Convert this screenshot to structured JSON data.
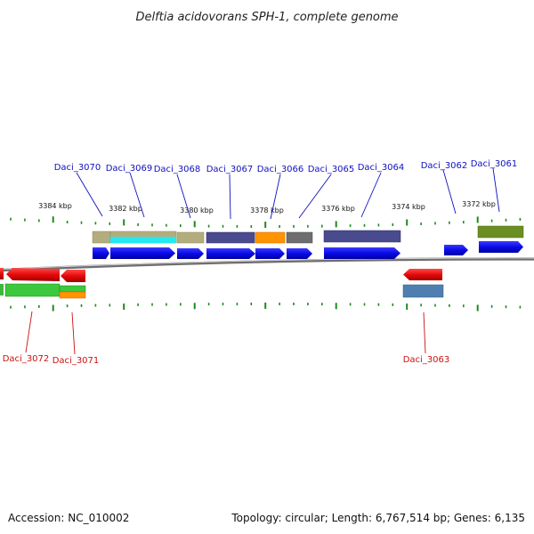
{
  "header": {
    "title": "Delftia acidovorans SPH-1, complete genome"
  },
  "footer": {
    "accession": "Accession: NC_010002",
    "topology": "Topology: circular; Length: 6,767,514 bp; Genes: 6,135"
  },
  "colors": {
    "label_top": "#1010c0",
    "label_bottom": "#cc1010",
    "backbone": "#8a8a8a",
    "tick": "#1d8a1d",
    "cds_forward": "#0a0ae6",
    "cds_reverse": "#e60a0a"
  },
  "scale": {
    "ticks": [
      {
        "label": "3384 kbp",
        "kbp": 3384
      },
      {
        "label": "3382 kbp",
        "kbp": 3382
      },
      {
        "label": "3380 kbp",
        "kbp": 3380
      },
      {
        "label": "3378 kbp",
        "kbp": 3378
      },
      {
        "label": "3376 kbp",
        "kbp": 3376
      },
      {
        "label": "3374 kbp",
        "kbp": 3374
      },
      {
        "label": "3372 kbp",
        "kbp": 3372
      }
    ]
  },
  "genes_top": [
    {
      "name": "Daci_3070"
    },
    {
      "name": "Daci_3069"
    },
    {
      "name": "Daci_3068"
    },
    {
      "name": "Daci_3067"
    },
    {
      "name": "Daci_3066"
    },
    {
      "name": "Daci_3065"
    },
    {
      "name": "Daci_3064"
    },
    {
      "name": "Daci_3062"
    },
    {
      "name": "Daci_3061"
    }
  ],
  "genes_bottom": [
    {
      "name": "Daci_3072"
    },
    {
      "name": "Daci_3071"
    },
    {
      "name": "Daci_3063"
    }
  ]
}
